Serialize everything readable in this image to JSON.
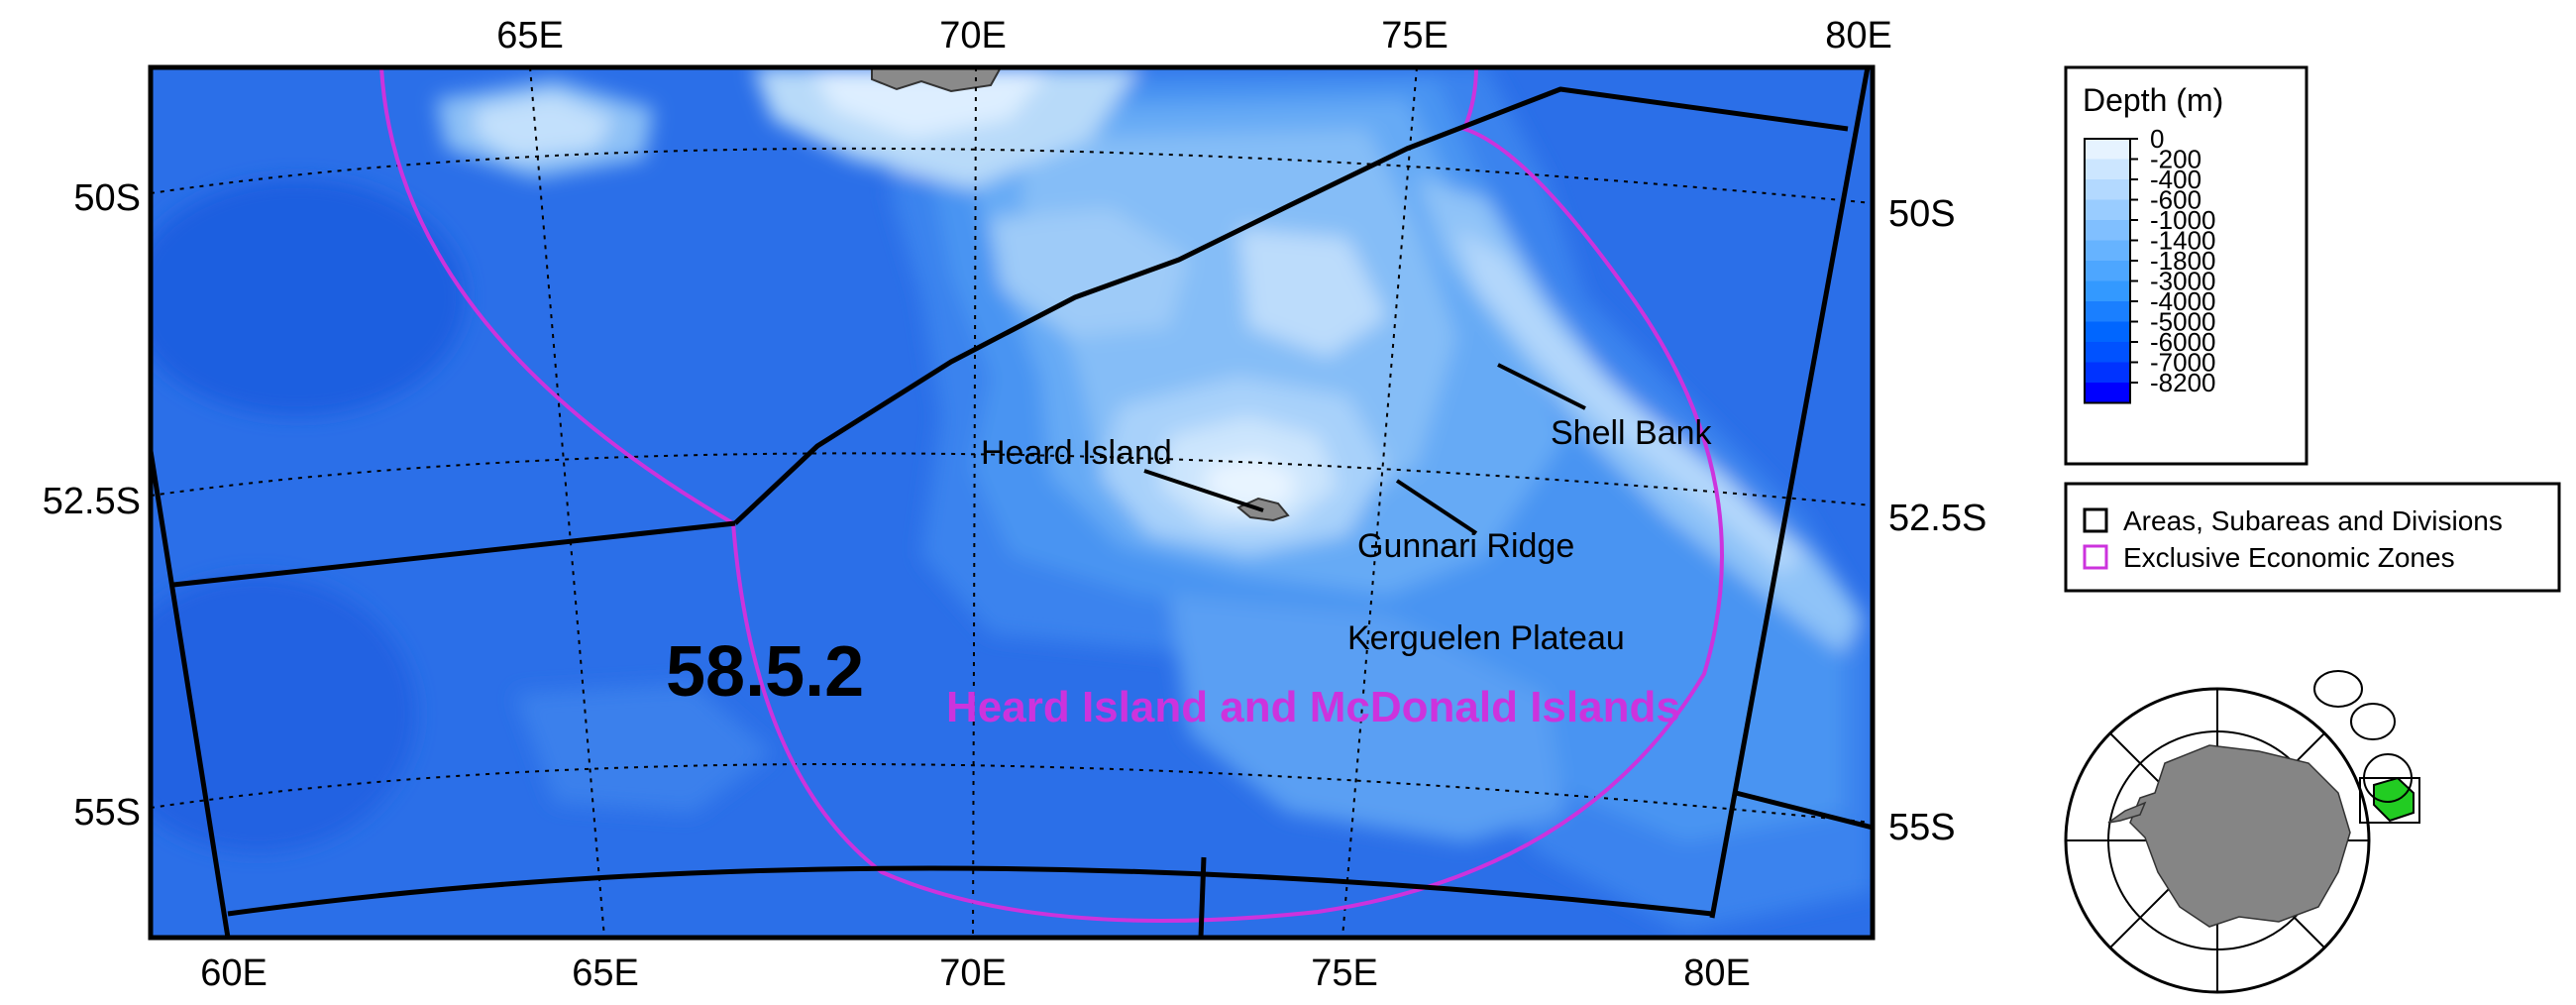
{
  "map": {
    "grid_labels": {
      "top_lon": [
        "65E",
        "70E",
        "75E",
        "80E"
      ],
      "bottom_lon": [
        "60E",
        "65E",
        "70E",
        "75E",
        "80E"
      ],
      "left_lat": [
        "50S",
        "52.5S",
        "55S"
      ],
      "right_lat": [
        "50S",
        "52.5S",
        "55S"
      ]
    },
    "division_label": "58.5.2",
    "eez_label": "Heard Island and McDonald Islands",
    "features": {
      "heard_island": "Heard Island",
      "shell_bank": "Shell Bank",
      "gunnari_ridge": "Gunnari Ridge",
      "kerguelen_plateau": "Kerguelen Plateau"
    }
  },
  "depth_legend": {
    "title": "Depth (m)",
    "levels": [
      "0",
      "-200",
      "-400",
      "-600",
      "-1000",
      "-1400",
      "-1800",
      "-3000",
      "-4000",
      "-5000",
      "-6000",
      "-7000",
      "-8200"
    ],
    "colors": [
      "#e6f3ff",
      "#cce6ff",
      "#b3d9ff",
      "#99ccff",
      "#80bfff",
      "#66b3ff",
      "#4da6ff",
      "#3399ff",
      "#1a7fff",
      "#0066ff",
      "#0052ff",
      "#0033ff",
      "#0000ff"
    ]
  },
  "boundary_legend": {
    "items": [
      {
        "label": "Areas, Subareas and Divisions",
        "color": "#000000"
      },
      {
        "label": "Exclusive Economic Zones",
        "color": "#cc33dd"
      }
    ]
  },
  "colors": {
    "eez": "#cc33dd",
    "deep_ocean": "#2a6fe6",
    "land": "#888888",
    "highlight": "#22cc22"
  }
}
